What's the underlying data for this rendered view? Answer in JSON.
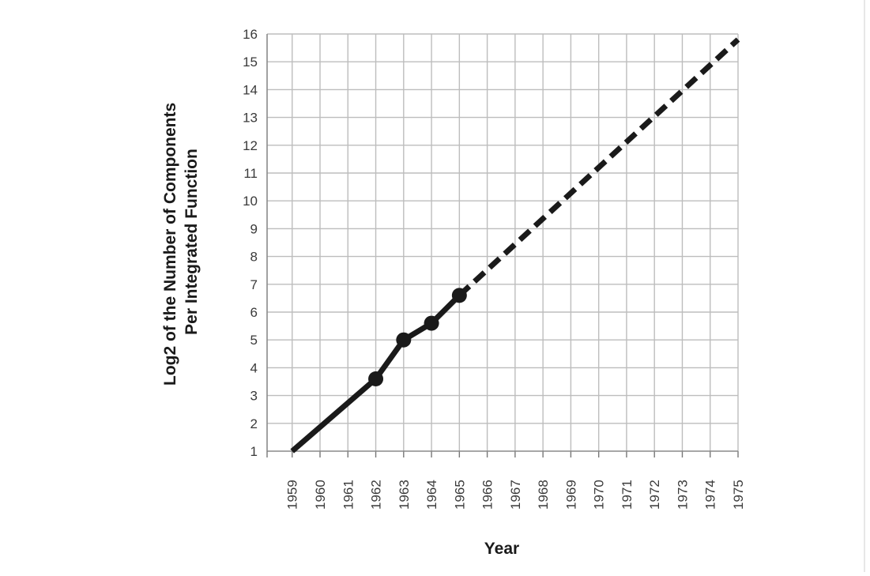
{
  "chart_data": {
    "type": "line",
    "title": "",
    "xlabel": "Year",
    "ylabel": [
      "Log2 of the Number of Components",
      "Per Integrated Function"
    ],
    "x_ticks": [
      "1959",
      "1960",
      "1961",
      "1962",
      "1963",
      "1964",
      "1965",
      "1966",
      "1967",
      "1968",
      "1969",
      "1970",
      "1971",
      "1972",
      "1973",
      "1974",
      "1975"
    ],
    "y_ticks": [
      "1",
      "2",
      "3",
      "4",
      "5",
      "6",
      "7",
      "8",
      "9",
      "10",
      "11",
      "12",
      "13",
      "14",
      "15",
      "16"
    ],
    "xlim": [
      1958.1,
      1975
    ],
    "ylim": [
      1,
      16
    ],
    "grid": true,
    "series": [
      {
        "style": "solid",
        "x": [
          1959,
          1962,
          1963,
          1964,
          1965
        ],
        "y": [
          1,
          3.6,
          5,
          5.6,
          6.6
        ],
        "markers_at": [
          1962,
          1963,
          1964,
          1965
        ]
      },
      {
        "style": "dashed",
        "x": [
          1965,
          1975
        ],
        "y": [
          6.6,
          15.8
        ]
      }
    ],
    "colors": {
      "line": "#1a1a1a",
      "grid": "#bdbdbd"
    }
  }
}
